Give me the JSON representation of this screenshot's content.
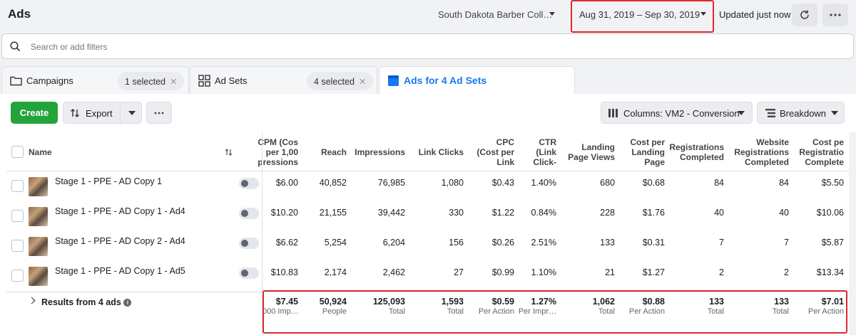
{
  "header": {
    "title": "Ads",
    "account": "South Dakota Barber Coll…",
    "date_range": "Aug 31, 2019 – Sep 30, 2019",
    "updated": "Updated just now"
  },
  "search": {
    "placeholder": "Search or add filters"
  },
  "tabs": {
    "campaigns": {
      "label": "Campaigns",
      "pill": "1 selected"
    },
    "adsets": {
      "label": "Ad Sets",
      "pill": "4 selected"
    },
    "ads": {
      "label": "Ads for 4 Ad Sets"
    }
  },
  "toolbar": {
    "create": "Create",
    "export": "Export",
    "columns": "Columns: VM2 - Conversion",
    "breakdown": "Breakdown"
  },
  "table": {
    "name_header": "Name",
    "columns": [
      [
        "CPM (Cos",
        "per 1,00",
        "pressions"
      ],
      [
        "Reach"
      ],
      [
        "Impressions"
      ],
      [
        "Link Clicks"
      ],
      [
        "CPC",
        "(Cost per",
        "Link"
      ],
      [
        "CTR",
        "(Link",
        "Click-"
      ],
      [
        "Landing",
        "Page Views"
      ],
      [
        "Cost per",
        "Landing",
        "Page"
      ],
      [
        "Registrations",
        "Completed"
      ],
      [
        "Website",
        "Registrations",
        "Completed"
      ],
      [
        "Cost pe",
        "Registratio",
        "Complete"
      ]
    ],
    "rows": [
      {
        "name": "Stage 1 - PPE - AD Copy 1",
        "values": [
          "$6.00",
          "40,852",
          "76,985",
          "1,080",
          "$0.43",
          "1.40%",
          "680",
          "$0.68",
          "84",
          "84",
          "$5.50"
        ]
      },
      {
        "name": "Stage 1 - PPE - AD Copy 1 - Ad4",
        "values": [
          "$10.20",
          "21,155",
          "39,442",
          "330",
          "$1.22",
          "0.84%",
          "228",
          "$1.76",
          "40",
          "40",
          "$10.06"
        ]
      },
      {
        "name": "Stage 1 - PPE - AD Copy 2 - Ad4",
        "values": [
          "$6.62",
          "5,254",
          "6,204",
          "156",
          "$0.26",
          "2.51%",
          "133",
          "$0.31",
          "7",
          "7",
          "$5.87"
        ]
      },
      {
        "name": "Stage 1 - PPE - AD Copy 1 - Ad5",
        "values": [
          "$10.83",
          "2,174",
          "2,462",
          "27",
          "$0.99",
          "1.10%",
          "21",
          "$1.27",
          "2",
          "2",
          "$13.34"
        ]
      }
    ],
    "results": {
      "label": "Results from 4 ads",
      "values": [
        "$7.45",
        "50,924",
        "125,093",
        "1,593",
        "$0.59",
        "1.27%",
        "1,062",
        "$0.88",
        "133",
        "133",
        "$7.01"
      ],
      "subs": [
        "000 Imp…",
        "People",
        "Total",
        "Total",
        "Per Action",
        "Per Impr…",
        "Total",
        "Per Action",
        "Total",
        "Total",
        "Per Action"
      ]
    }
  },
  "colors": {
    "create_green": "#24a33a",
    "highlight_red": "#e0282e",
    "active_tab_blue": "#1877f2"
  }
}
